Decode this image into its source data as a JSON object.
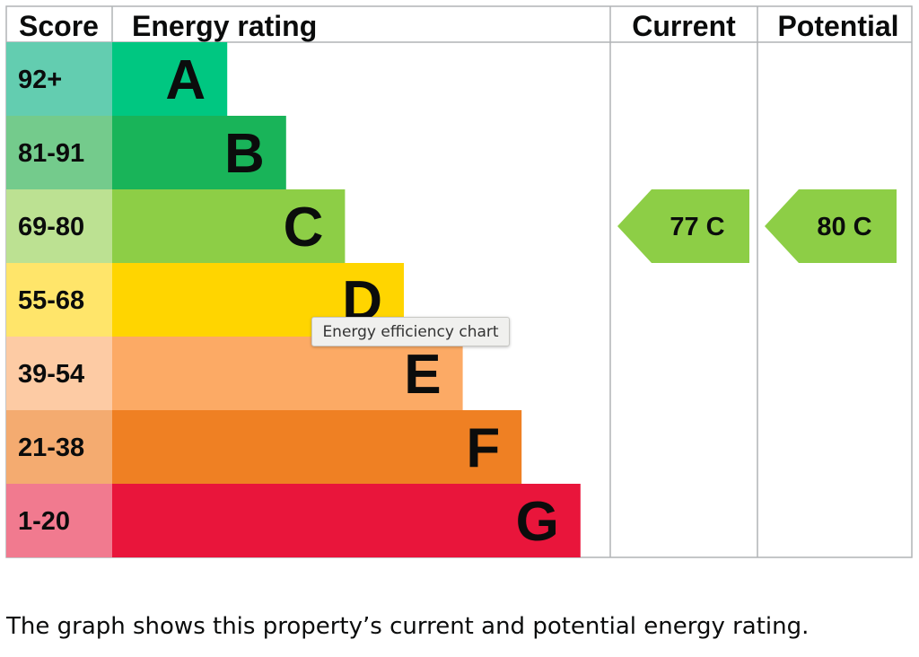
{
  "chart_data": {
    "type": "table",
    "headers": {
      "score": "Score",
      "rating": "Energy rating",
      "current": "Current",
      "potential": "Potential"
    },
    "bands": [
      {
        "score": "92+",
        "letter": "A",
        "color": "#00c781",
        "score_bg": "#63cdb0"
      },
      {
        "score": "81-91",
        "letter": "B",
        "color": "#19b459",
        "score_bg": "#74cb8c"
      },
      {
        "score": "69-80",
        "letter": "C",
        "color": "#8dce46",
        "score_bg": "#bce192"
      },
      {
        "score": "55-68",
        "letter": "D",
        "color": "#ffd500",
        "score_bg": "#ffe56a"
      },
      {
        "score": "39-54",
        "letter": "E",
        "color": "#fcaa65",
        "score_bg": "#fdcba4"
      },
      {
        "score": "21-38",
        "letter": "F",
        "color": "#ef8023",
        "score_bg": "#f4ab70"
      },
      {
        "score": "1-20",
        "letter": "G",
        "color": "#e9153b",
        "score_bg": "#f17a8f"
      }
    ],
    "current": {
      "value": 77,
      "band": "C",
      "label": "77 C"
    },
    "potential": {
      "value": 80,
      "band": "C",
      "label": "80 C"
    }
  },
  "tooltip": "Energy efficiency chart",
  "caption": "The graph shows this property’s current and potential energy rating."
}
